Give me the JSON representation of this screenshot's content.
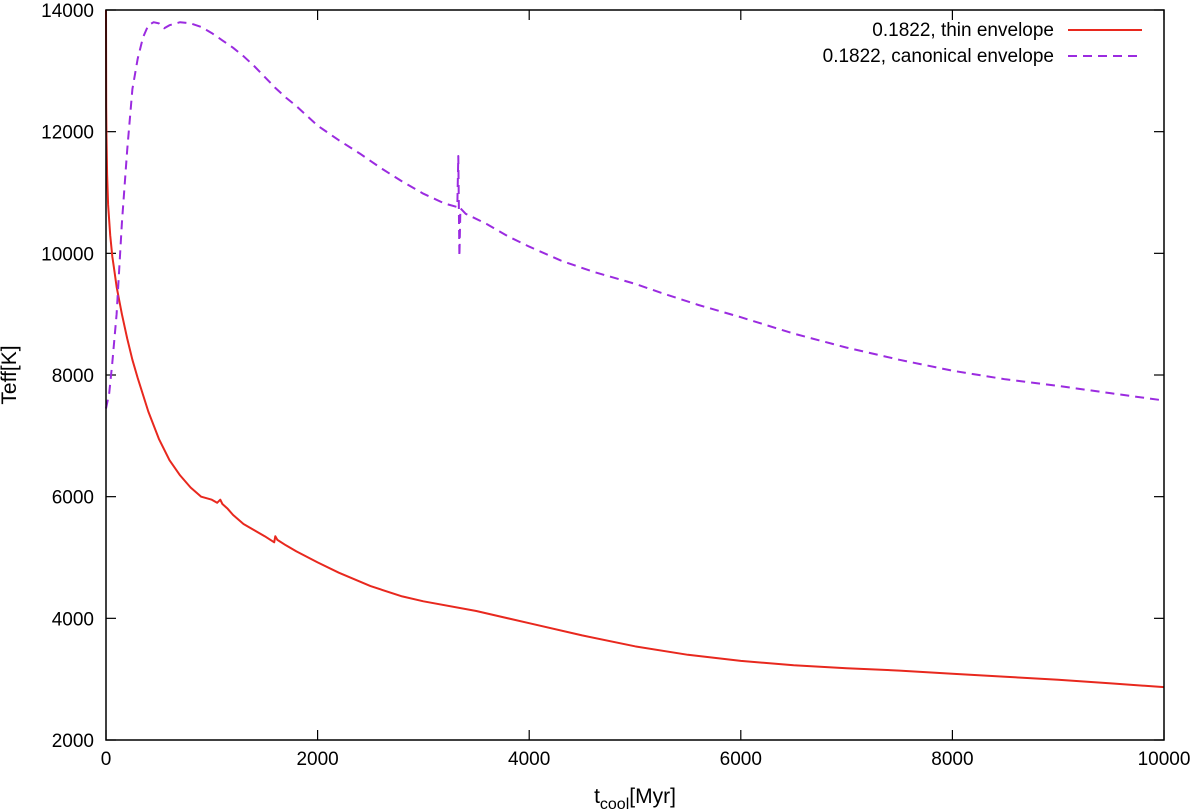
{
  "chart_data": {
    "type": "line",
    "xlabel": "t",
    "xlabel_sub": "cool",
    "xlabel_unit": "[Myr]",
    "ylabel": "Teff[K]",
    "xlim": [
      0,
      10000
    ],
    "ylim": [
      2000,
      14000
    ],
    "xticks": [
      0,
      2000,
      4000,
      6000,
      8000,
      10000
    ],
    "yticks": [
      2000,
      4000,
      6000,
      8000,
      10000,
      12000,
      14000
    ],
    "grid": false,
    "legend_position": "top-right",
    "series": [
      {
        "name": "0.1822, thin envelope",
        "color": "#e8281e",
        "style": "solid",
        "x": [
          0,
          2,
          5,
          10,
          20,
          40,
          60,
          80,
          100,
          150,
          200,
          250,
          300,
          400,
          500,
          600,
          700,
          800,
          900,
          1000,
          1050,
          1080,
          1100,
          1150,
          1200,
          1300,
          1400,
          1500,
          1590,
          1600,
          1620,
          1700,
          1800,
          2000,
          2200,
          2500,
          2800,
          3000,
          3500,
          4000,
          4500,
          5000,
          5500,
          6000,
          6500,
          7000,
          7500,
          8000,
          8500,
          9000,
          9500,
          10000
        ],
        "y": [
          14000,
          12400,
          11900,
          11300,
          10800,
          10300,
          9950,
          9700,
          9450,
          9000,
          8600,
          8250,
          7950,
          7400,
          6950,
          6600,
          6350,
          6150,
          6000,
          5950,
          5900,
          5950,
          5880,
          5800,
          5700,
          5550,
          5450,
          5350,
          5250,
          5350,
          5290,
          5200,
          5100,
          4920,
          4750,
          4530,
          4360,
          4280,
          4120,
          3920,
          3720,
          3540,
          3400,
          3300,
          3230,
          3180,
          3140,
          3090,
          3040,
          2990,
          2930,
          2870
        ]
      },
      {
        "name": "0.1822, canonical envelope",
        "color": "#9b2be0",
        "style": "dashed",
        "x": [
          0,
          30,
          60,
          100,
          150,
          200,
          250,
          300,
          350,
          400,
          450,
          500,
          550,
          600,
          700,
          800,
          900,
          1000,
          1100,
          1200,
          1300,
          1400,
          1500,
          1600,
          1700,
          1800,
          1900,
          2000,
          2200,
          2400,
          2600,
          2800,
          3000,
          3200,
          3320,
          3330,
          3340,
          3350,
          3400,
          3600,
          3800,
          4000,
          4300,
          4600,
          5000,
          5300,
          5600,
          6000,
          6500,
          7000,
          7500,
          8000,
          8500,
          9000,
          9500,
          10000
        ],
        "y": [
          7450,
          7700,
          8200,
          9000,
          10500,
          11700,
          12700,
          13200,
          13550,
          13750,
          13800,
          13780,
          13700,
          13750,
          13800,
          13780,
          13720,
          13620,
          13500,
          13380,
          13240,
          13080,
          12900,
          12720,
          12560,
          12420,
          12260,
          12100,
          11860,
          11640,
          11400,
          11180,
          10980,
          10820,
          10760,
          11600,
          9950,
          10740,
          10650,
          10480,
          10280,
          10110,
          9880,
          9700,
          9500,
          9320,
          9150,
          8950,
          8680,
          8450,
          8250,
          8070,
          7930,
          7820,
          7700,
          7580
        ]
      }
    ]
  }
}
